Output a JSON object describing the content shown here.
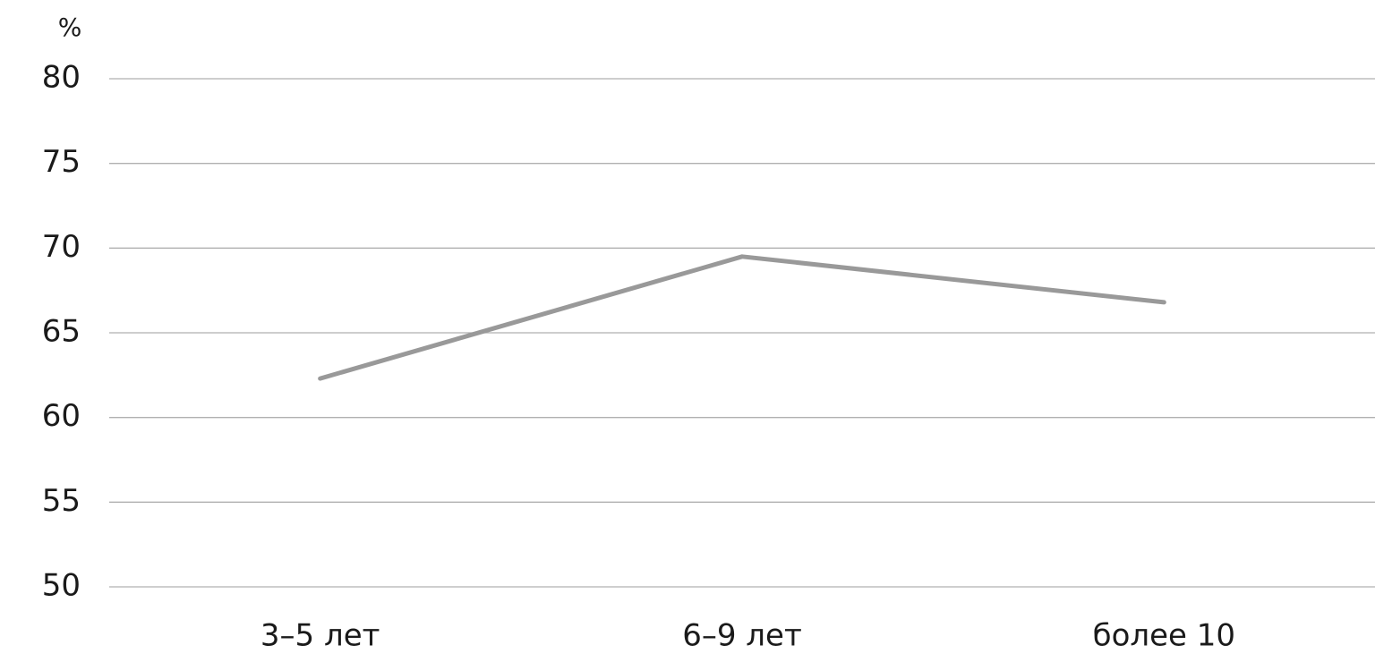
{
  "chart_data": {
    "type": "line",
    "y_label": "%",
    "categories": [
      "3–5 лет",
      "6–9 лет",
      "более 10"
    ],
    "values": [
      62.3,
      69.5,
      66.8
    ],
    "color": "#999999",
    "ylim": [
      50,
      80
    ],
    "yticks": [
      50,
      55,
      60,
      65,
      70,
      75,
      80
    ],
    "grid": true
  }
}
